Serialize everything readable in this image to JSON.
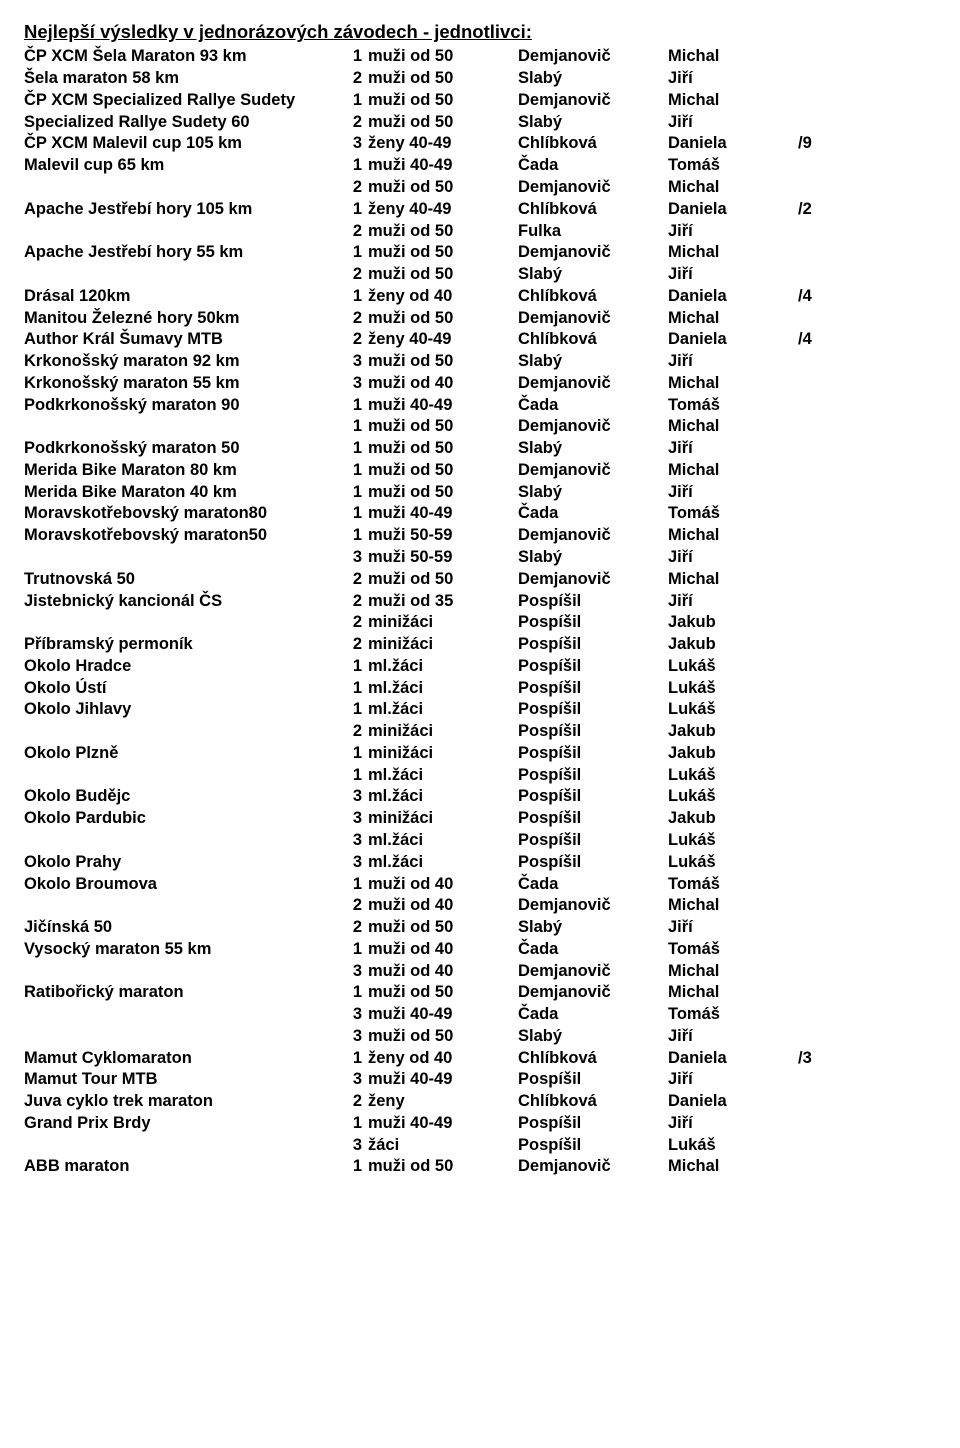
{
  "title": "Nejlepší výsledky v jednorázových závodech - jednotlivci:",
  "rows": [
    {
      "race": "ČP XCM Šela Maraton 93 km",
      "rank": "1",
      "cat": "muži od 50",
      "last": "Demjanovič",
      "first": "Michal",
      "note": ""
    },
    {
      "race": "Šela maraton 58 km",
      "rank": "2",
      "cat": "muži od 50",
      "last": "Slabý",
      "first": "Jiří",
      "note": ""
    },
    {
      "race": "ČP XCM Specialized Rallye Sudety",
      "rank": "1",
      "cat": "muži od 50",
      "last": "Demjanovič",
      "first": "Michal",
      "note": ""
    },
    {
      "race": "Specialized Rallye Sudety 60",
      "rank": "2",
      "cat": "muži od 50",
      "last": "Slabý",
      "first": "Jiří",
      "note": ""
    },
    {
      "race": "ČP XCM Malevil cup 105 km",
      "rank": "3",
      "cat": "ženy 40-49",
      "last": "Chlíbková",
      "first": "Daniela",
      "note": "/9"
    },
    {
      "race": "Malevil cup 65 km",
      "rank": "1",
      "cat": "muži 40-49",
      "last": "Čada",
      "first": "Tomáš",
      "note": ""
    },
    {
      "race": "",
      "rank": "2",
      "cat": "muži od 50",
      "last": "Demjanovič",
      "first": "Michal",
      "note": ""
    },
    {
      "race": "Apache Jestřebí hory 105 km",
      "rank": "1",
      "cat": "ženy 40-49",
      "last": "Chlíbková",
      "first": "Daniela",
      "note": "/2"
    },
    {
      "race": "",
      "rank": "2",
      "cat": "muži od 50",
      "last": "Fulka",
      "first": "Jiří",
      "note": ""
    },
    {
      "race": "Apache Jestřebí hory 55 km",
      "rank": "1",
      "cat": "muži od 50",
      "last": "Demjanovič",
      "first": "Michal",
      "note": ""
    },
    {
      "race": "",
      "rank": "2",
      "cat": "muži od 50",
      "last": "Slabý",
      "first": "Jiří",
      "note": ""
    },
    {
      "race": "Drásal 120km",
      "rank": "1",
      "cat": "ženy od 40",
      "last": "Chlíbková",
      "first": "Daniela",
      "note": "/4"
    },
    {
      "race": "Manitou Železné hory 50km",
      "rank": "2",
      "cat": "muži od 50",
      "last": "Demjanovič",
      "first": "Michal",
      "note": ""
    },
    {
      "race": "Author Král Šumavy MTB",
      "rank": "2",
      "cat": "ženy 40-49",
      "last": "Chlíbková",
      "first": "Daniela",
      "note": "/4"
    },
    {
      "race": "Krkonošský maraton 92 km",
      "rank": "3",
      "cat": "muži od 50",
      "last": "Slabý",
      "first": "Jiří",
      "note": ""
    },
    {
      "race": "Krkonošský maraton 55 km",
      "rank": "3",
      "cat": "muži od 40",
      "last": "Demjanovič",
      "first": "Michal",
      "note": ""
    },
    {
      "race": "Podkrkonošský maraton 90",
      "rank": "1",
      "cat": "muži 40-49",
      "last": "Čada",
      "first": "Tomáš",
      "note": ""
    },
    {
      "race": "",
      "rank": "1",
      "cat": "muži od 50",
      "last": "Demjanovič",
      "first": "Michal",
      "note": ""
    },
    {
      "race": "Podkrkonošský maraton 50",
      "rank": "1",
      "cat": "muži od 50",
      "last": "Slabý",
      "first": "Jiří",
      "note": ""
    },
    {
      "race": "Merida Bike Maraton 80 km",
      "rank": "1",
      "cat": "muži od 50",
      "last": "Demjanovič",
      "first": "Michal",
      "note": ""
    },
    {
      "race": "Merida Bike Maraton 40 km",
      "rank": "1",
      "cat": "muži od 50",
      "last": "Slabý",
      "first": "Jiří",
      "note": ""
    },
    {
      "race": "Moravskotřebovský maraton80",
      "rank": "1",
      "cat": "muži 40-49",
      "last": "Čada",
      "first": "Tomáš",
      "note": ""
    },
    {
      "race": "Moravskotřebovský maraton50",
      "rank": "1",
      "cat": "muži 50-59",
      "last": "Demjanovič",
      "first": "Michal",
      "note": ""
    },
    {
      "race": "",
      "rank": "3",
      "cat": "muži 50-59",
      "last": "Slabý",
      "first": "Jiří",
      "note": ""
    },
    {
      "race": "Trutnovská 50",
      "rank": "2",
      "cat": "muži od 50",
      "last": "Demjanovič",
      "first": "Michal",
      "note": ""
    },
    {
      "race": "Jistebnický kancionál ČS",
      "rank": "2",
      "cat": "muži od 35",
      "last": "Pospíšil",
      "first": "Jiří",
      "note": ""
    },
    {
      "race": "",
      "rank": "2",
      "cat": "minižáci",
      "last": "Pospíšil",
      "first": "Jakub",
      "note": ""
    },
    {
      "race": "Příbramský permoník",
      "rank": "2",
      "cat": "minižáci",
      "last": "Pospíšil",
      "first": "Jakub",
      "note": ""
    },
    {
      "race": "Okolo Hradce",
      "rank": "1",
      "cat": "ml.žáci",
      "last": "Pospíšil",
      "first": "Lukáš",
      "note": ""
    },
    {
      "race": "Okolo Ústí",
      "rank": "1",
      "cat": "ml.žáci",
      "last": "Pospíšil",
      "first": "Lukáš",
      "note": ""
    },
    {
      "race": "Okolo Jihlavy",
      "rank": "1",
      "cat": "ml.žáci",
      "last": "Pospíšil",
      "first": "Lukáš",
      "note": ""
    },
    {
      "race": "",
      "rank": "2",
      "cat": "minižáci",
      "last": "Pospíšil",
      "first": "Jakub",
      "note": ""
    },
    {
      "race": "Okolo Plzně",
      "rank": "1",
      "cat": "minižáci",
      "last": "Pospíšil",
      "first": "Jakub",
      "note": ""
    },
    {
      "race": "",
      "rank": "1",
      "cat": "ml.žáci",
      "last": "Pospíšil",
      "first": "Lukáš",
      "note": ""
    },
    {
      "race": "Okolo Budějc",
      "rank": "3",
      "cat": "ml.žáci",
      "last": "Pospíšil",
      "first": "Lukáš",
      "note": ""
    },
    {
      "race": "Okolo Pardubic",
      "rank": "3",
      "cat": "minižáci",
      "last": "Pospíšil",
      "first": "Jakub",
      "note": ""
    },
    {
      "race": "",
      "rank": "3",
      "cat": "ml.žáci",
      "last": "Pospíšil",
      "first": "Lukáš",
      "note": ""
    },
    {
      "race": "Okolo Prahy",
      "rank": "3",
      "cat": "ml.žáci",
      "last": "Pospíšil",
      "first": "Lukáš",
      "note": ""
    },
    {
      "race": "Okolo Broumova",
      "rank": "1",
      "cat": "muži od 40",
      "last": "Čada",
      "first": "Tomáš",
      "note": ""
    },
    {
      "race": "",
      "rank": "2",
      "cat": "muži od 40",
      "last": "Demjanovič",
      "first": "Michal",
      "note": ""
    },
    {
      "race": "Jičínská 50",
      "rank": "2",
      "cat": "muži od 50",
      "last": "Slabý",
      "first": "Jiří",
      "note": ""
    },
    {
      "race": "Vysocký maraton 55 km",
      "rank": "1",
      "cat": "muži od 40",
      "last": "Čada",
      "first": "Tomáš",
      "note": ""
    },
    {
      "race": "",
      "rank": "3",
      "cat": "muži od 40",
      "last": "Demjanovič",
      "first": "Michal",
      "note": ""
    },
    {
      "race": "Ratibořický maraton",
      "rank": "1",
      "cat": "muži od 50",
      "last": "Demjanovič",
      "first": "Michal",
      "note": ""
    },
    {
      "race": "",
      "rank": "3",
      "cat": "muži 40-49",
      "last": "Čada",
      "first": "Tomáš",
      "note": ""
    },
    {
      "race": "",
      "rank": "3",
      "cat": "muži od 50",
      "last": "Slabý",
      "first": "Jiří",
      "note": ""
    },
    {
      "race": "Mamut Cyklomaraton",
      "rank": "1",
      "cat": "ženy od 40",
      "last": "Chlíbková",
      "first": "Daniela",
      "note": "/3"
    },
    {
      "race": "Mamut Tour MTB",
      "rank": "3",
      "cat": "muži 40-49",
      "last": "Pospíšil",
      "first": "Jiří",
      "note": ""
    },
    {
      "race": "Juva cyklo trek maraton",
      "rank": "2",
      "cat": "ženy",
      "last": "Chlíbková",
      "first": "Daniela",
      "note": ""
    },
    {
      "race": "Grand Prix Brdy",
      "rank": "1",
      "cat": "muži 40-49",
      "last": "Pospíšil",
      "first": "Jiří",
      "note": ""
    },
    {
      "race": "",
      "rank": "3",
      "cat": "žáci",
      "last": "Pospíšil",
      "first": "Lukáš",
      "note": ""
    },
    {
      "race": "ABB maraton",
      "rank": "1",
      "cat": "muži od 50",
      "last": "Demjanovič",
      "first": "Michal",
      "note": ""
    }
  ]
}
